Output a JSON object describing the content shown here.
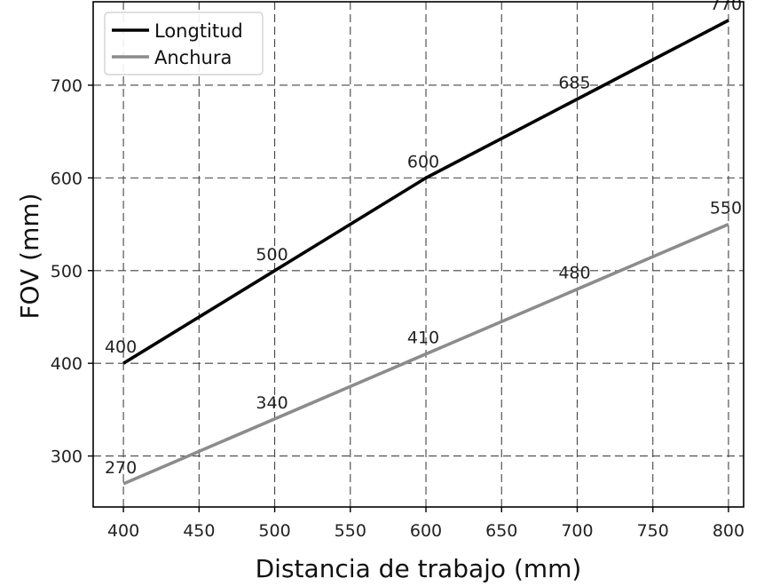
{
  "chart_data": {
    "type": "line",
    "xlabel": "Distancia de trabajo (mm)",
    "ylabel": "FOV (mm)",
    "xlim": [
      380,
      810
    ],
    "ylim": [
      245,
      790
    ],
    "xticks": [
      400,
      450,
      500,
      550,
      600,
      650,
      700,
      750,
      800
    ],
    "yticks": [
      300,
      400,
      500,
      600,
      700
    ],
    "grid": true,
    "legend_position": "top-left",
    "series": [
      {
        "name": "Longtitud",
        "color": "#000000",
        "x": [
          400,
          500,
          600,
          700,
          800
        ],
        "y": [
          400,
          500,
          600,
          685,
          770
        ]
      },
      {
        "name": "Anchura",
        "color": "#8c8c8c",
        "x": [
          400,
          500,
          600,
          700,
          800
        ],
        "y": [
          270,
          340,
          410,
          480,
          550
        ]
      }
    ]
  }
}
